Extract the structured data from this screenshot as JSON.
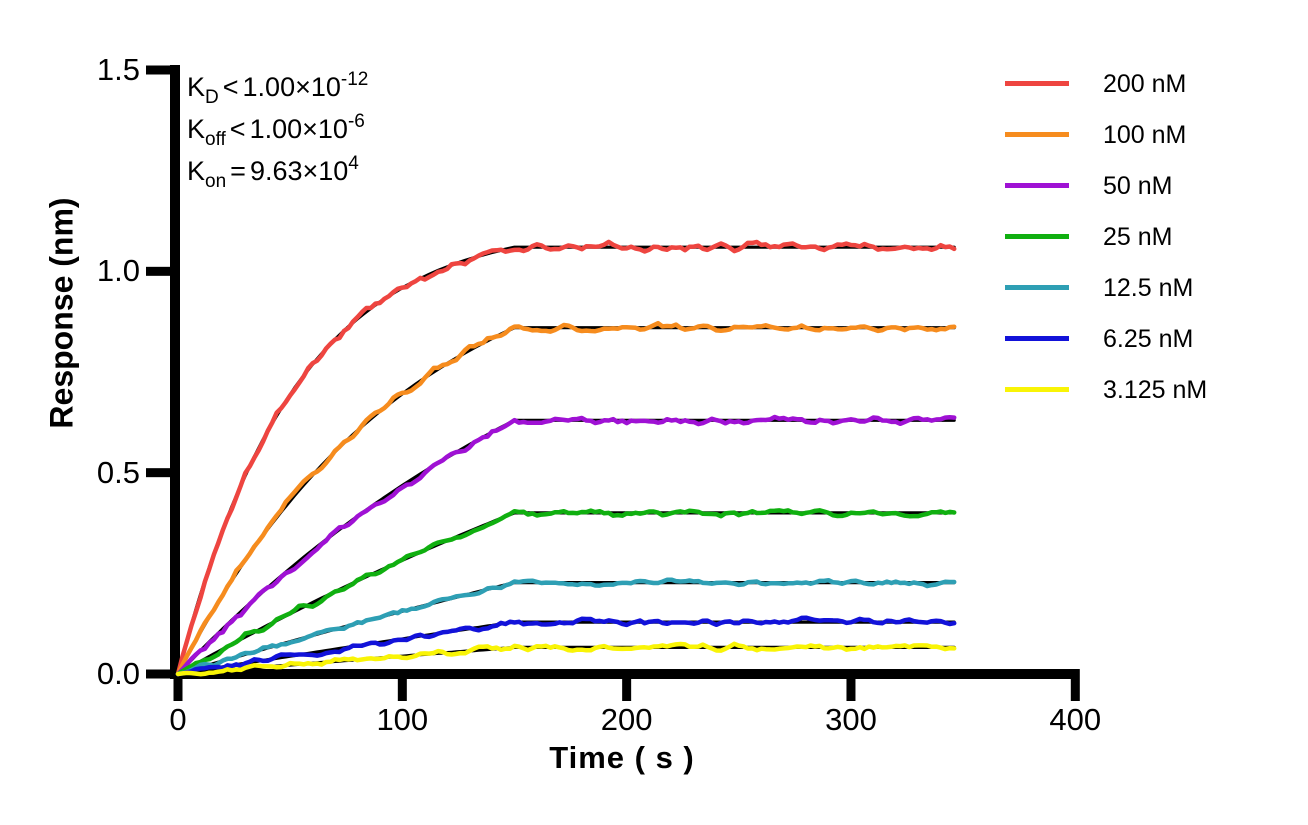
{
  "figure": {
    "background": "#FFFFFF"
  },
  "annotation": {
    "lines": [
      {
        "segments": [
          {
            "t": "K"
          },
          {
            "t": "D",
            "s": "sub"
          },
          {
            "t": "<",
            "s": "rel"
          },
          {
            "t": "1.00×10"
          },
          {
            "t": "-12",
            "s": "sup"
          }
        ]
      },
      {
        "segments": [
          {
            "t": "K"
          },
          {
            "t": "off",
            "s": "sub"
          },
          {
            "t": "<",
            "s": "rel"
          },
          {
            "t": "1.00×10"
          },
          {
            "t": "-6",
            "s": "sup"
          }
        ]
      },
      {
        "segments": [
          {
            "t": "K"
          },
          {
            "t": "on",
            "s": "sub"
          },
          {
            "t": "=",
            "s": "rel"
          },
          {
            "t": "9.63×10"
          },
          {
            "t": "4",
            "s": "sup"
          }
        ]
      }
    ]
  },
  "chart_data": {
    "type": "line",
    "title": "",
    "xlabel": "Time ( s )",
    "ylabel": "Response (nm)",
    "xlim": [
      0,
      400
    ],
    "ylim": [
      0,
      1.5
    ],
    "grid": false,
    "legend_position": "right-outside",
    "axis_color": "#000000",
    "fit_color": "#000000",
    "association_end_s": 150,
    "trace_end_s": 345,
    "kinetics": {
      "K_D": "<1.00×10^-12",
      "K_off": "<1.00×10^-6",
      "K_on": "=9.63×10^4"
    },
    "x_ticks": [
      {
        "value": 0,
        "label": "0"
      },
      {
        "value": 100,
        "label": "100"
      },
      {
        "value": 200,
        "label": "200"
      },
      {
        "value": 300,
        "label": "300"
      },
      {
        "value": 400,
        "label": "400"
      }
    ],
    "y_ticks": [
      {
        "value": 0,
        "label": "0.0"
      },
      {
        "value": 0.5,
        "label": "0.5"
      },
      {
        "value": 1.0,
        "label": "1.0"
      },
      {
        "value": 1.5,
        "label": "1.5"
      }
    ],
    "series": [
      {
        "name": "200 nM",
        "concentration_nM": 200,
        "color": "#EE4540",
        "plateau_nm": 1.06,
        "k_obs_per_s": 0.01926,
        "noise_nm": 0.011,
        "sample_t_s": [
          0,
          30,
          60,
          90,
          120,
          150,
          345
        ],
        "sample_response_nm": [
          0,
          0.493,
          0.769,
          0.924,
          1.011,
          1.06,
          1.06
        ]
      },
      {
        "name": "100 nM",
        "concentration_nM": 100,
        "color": "#F68C1E",
        "plateau_nm": 0.86,
        "k_obs_per_s": 0.00963,
        "noise_nm": 0.009,
        "sample_t_s": [
          0,
          30,
          60,
          90,
          120,
          150,
          345
        ],
        "sample_response_nm": [
          0,
          0.282,
          0.494,
          0.652,
          0.771,
          0.86,
          0.86
        ]
      },
      {
        "name": "50 nM",
        "concentration_nM": 50,
        "color": "#9F11D4",
        "plateau_nm": 0.63,
        "k_obs_per_s": 0.004815,
        "noise_nm": 0.009,
        "sample_t_s": [
          0,
          30,
          60,
          90,
          120,
          150,
          345
        ],
        "sample_response_nm": [
          0,
          0.165,
          0.307,
          0.43,
          0.538,
          0.63,
          0.63
        ]
      },
      {
        "name": "25 nM",
        "concentration_nM": 25,
        "color": "#10AF10",
        "plateau_nm": 0.4,
        "k_obs_per_s": 0.0024,
        "noise_nm": 0.008,
        "sample_t_s": [
          0,
          30,
          60,
          90,
          120,
          150,
          345
        ],
        "sample_response_nm": [
          0,
          0.092,
          0.178,
          0.257,
          0.331,
          0.4,
          0.4
        ]
      },
      {
        "name": "12.5 nM",
        "concentration_nM": 12.5,
        "color": "#2E9FB4",
        "plateau_nm": 0.227,
        "k_obs_per_s": 0.0012,
        "noise_nm": 0.007,
        "sample_t_s": [
          0,
          30,
          60,
          90,
          120,
          150,
          345
        ],
        "sample_response_nm": [
          0,
          0.049,
          0.096,
          0.141,
          0.185,
          0.227,
          0.227
        ]
      },
      {
        "name": "6.25 nM",
        "concentration_nM": 6.25,
        "color": "#1212D9",
        "plateau_nm": 0.129,
        "k_obs_per_s": 0.0006,
        "noise_nm": 0.008,
        "sample_t_s": [
          0,
          30,
          60,
          90,
          120,
          150,
          345
        ],
        "sample_response_nm": [
          0,
          0.027,
          0.053,
          0.079,
          0.104,
          0.129,
          0.129
        ]
      },
      {
        "name": "3.125 nM",
        "concentration_nM": 3.125,
        "color": "#F9F406",
        "plateau_nm": 0.066,
        "k_obs_per_s": 0.0003,
        "noise_nm": 0.008,
        "sample_t_s": [
          0,
          30,
          60,
          90,
          120,
          150,
          345
        ],
        "sample_response_nm": [
          0,
          0.013,
          0.027,
          0.04,
          0.053,
          0.066,
          0.066
        ]
      }
    ]
  }
}
